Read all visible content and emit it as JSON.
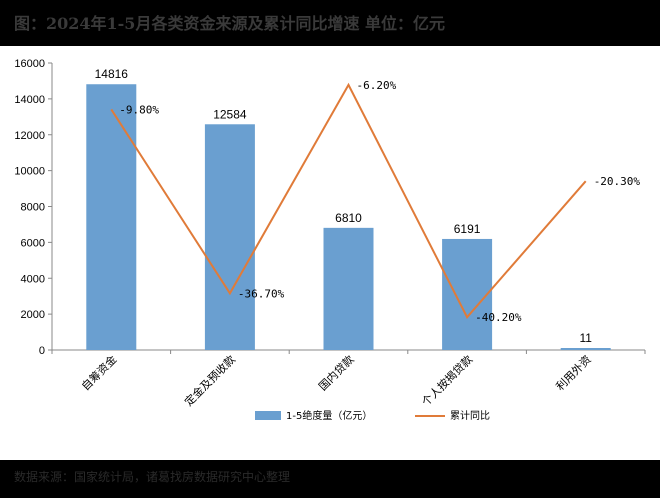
{
  "title": "图：2024年1-5月各类资金来源及累计同比增速   单位：亿元",
  "source": "数据来源：国家统计局，诸葛找房数据研究中心整理",
  "chart_data": {
    "type": "bar",
    "categories": [
      "自筹资金",
      "定金及预收款",
      "国内贷款",
      "个人按揭贷款",
      "利用外资"
    ],
    "series": [
      {
        "name": "1-5绝度量（亿元）",
        "type": "bar",
        "color": "#6a9fd0",
        "values": [
          14816,
          12584,
          6810,
          6191,
          11
        ],
        "labels": [
          "14816",
          "12584",
          "6810",
          "6191",
          "11"
        ]
      },
      {
        "name": "累计同比",
        "type": "line",
        "color": "#e07b39",
        "values": [
          -9.8,
          -36.7,
          -6.2,
          -40.2,
          -20.3
        ],
        "labels": [
          "-9.80%",
          "-36.70%",
          "-6.20%",
          "-40.20%",
          "-20.30%"
        ]
      }
    ],
    "yticks": [
      "0",
      "2000",
      "4000",
      "6000",
      "8000",
      "10000",
      "12000",
      "14000",
      "16000"
    ],
    "ylim": [
      0,
      16000
    ],
    "y2lim": [
      -45,
      -3
    ],
    "grid": false,
    "legend_position": "bottom"
  }
}
